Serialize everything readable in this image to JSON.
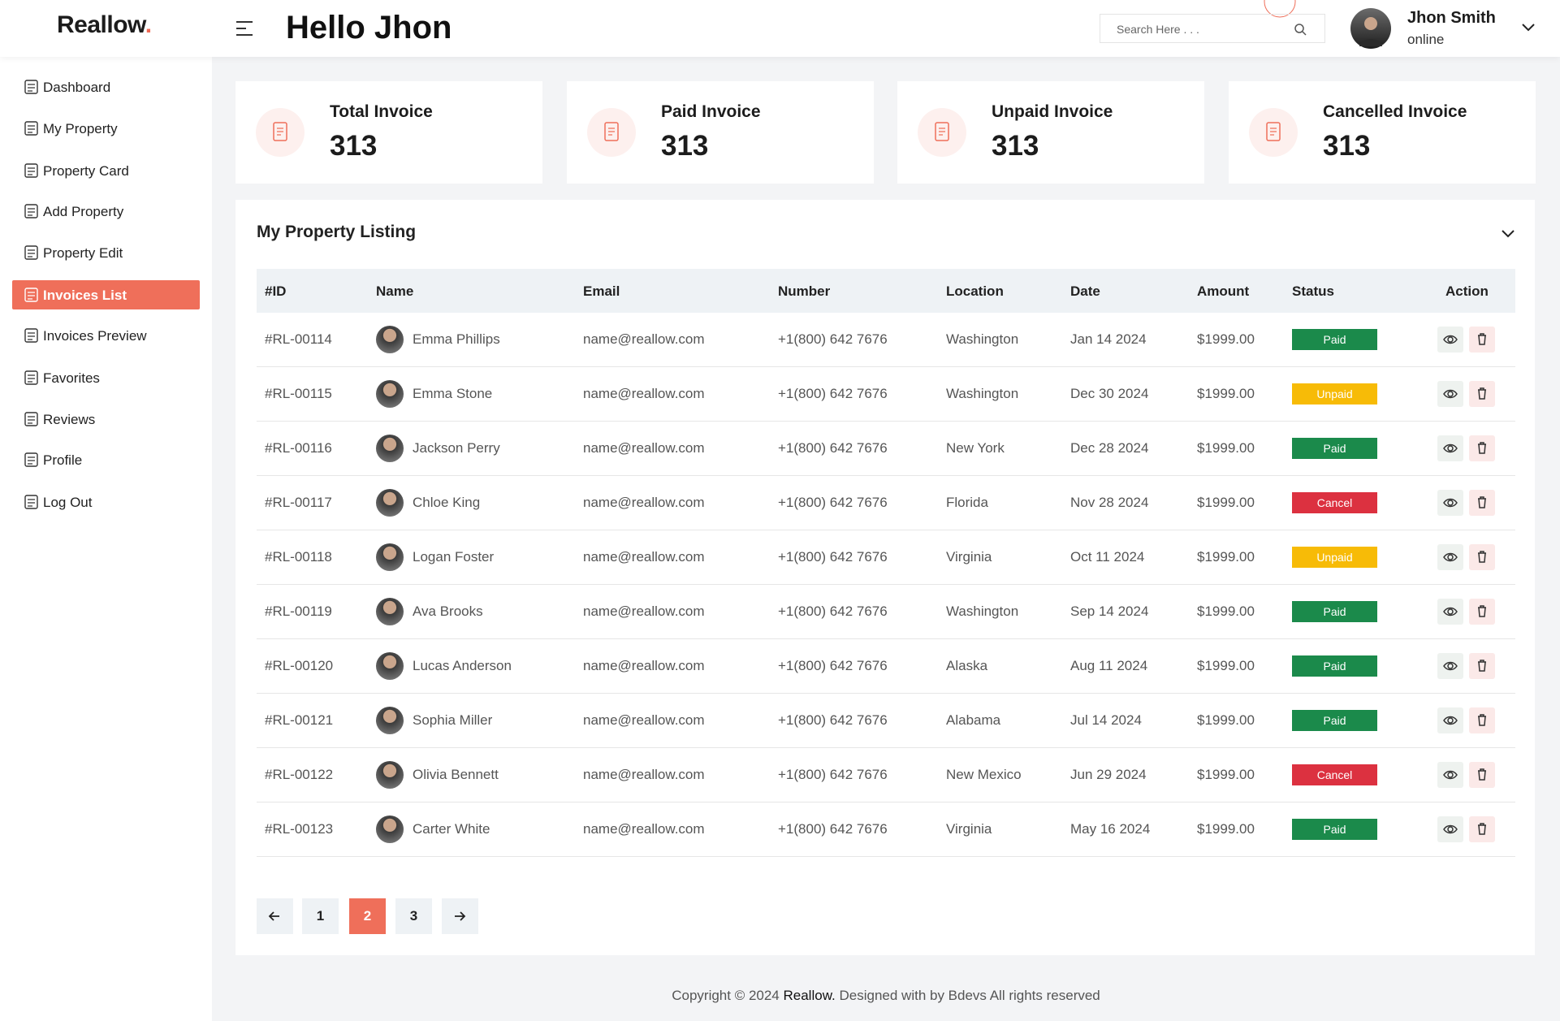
{
  "header": {
    "logo": "Reallow",
    "logo_dot": ".",
    "greeting": "Hello Jhon",
    "search_placeholder": "Search Here . . .",
    "user_name": "Jhon Smith",
    "user_status": "online"
  },
  "sidebar": {
    "items": [
      "Dashboard",
      "My Property",
      "Property Card",
      "Add Property",
      "Property Edit",
      "Invoices List",
      "Invoices Preview",
      "Favorites",
      "Reviews",
      "Profile",
      "Log Out"
    ],
    "active": 5
  },
  "cards": [
    {
      "title": "Total Invoice",
      "value": 313
    },
    {
      "title": "Paid Invoice",
      "value": 313
    },
    {
      "title": "Unpaid Invoice",
      "value": 313
    },
    {
      "title": "Cancelled Invoice",
      "value": 313
    }
  ],
  "listing": {
    "title": "My Property Listing",
    "columns": [
      "#ID",
      "Name",
      "Email",
      "Number",
      "Location",
      "Date",
      "Amount",
      "Status",
      "Action"
    ],
    "rows": [
      {
        "id": "#RL-00114",
        "name": "Emma Phillips",
        "email": "name@reallow.com",
        "number": "+1(800) 642 7676",
        "location": "Washington",
        "date": "Jan 14 2024",
        "amount": "$1999.00",
        "status": "Paid",
        "status_color": "#1b8a4b"
      },
      {
        "id": "#RL-00115",
        "name": "Emma Stone",
        "email": "name@reallow.com",
        "number": "+1(800) 642 7676",
        "location": "Washington",
        "date": "Dec 30 2024",
        "amount": "$1999.00",
        "status": "Unpaid",
        "status_color": "#f7bb07"
      },
      {
        "id": "#RL-00116",
        "name": "Jackson Perry",
        "email": "name@reallow.com",
        "number": "+1(800) 642 7676",
        "location": "New York",
        "date": "Dec 28 2024",
        "amount": "$1999.00",
        "status": "Paid",
        "status_color": "#1b8a4b"
      },
      {
        "id": "#RL-00117",
        "name": "Chloe King",
        "email": "name@reallow.com",
        "number": "+1(800) 642 7676",
        "location": "Florida",
        "date": "Nov 28 2024",
        "amount": "$1999.00",
        "status": "Cancel",
        "status_color": "#dc3140"
      },
      {
        "id": "#RL-00118",
        "name": "Logan Foster",
        "email": "name@reallow.com",
        "number": "+1(800) 642 7676",
        "location": "Virginia",
        "date": "Oct 11 2024",
        "amount": "$1999.00",
        "status": "Unpaid",
        "status_color": "#f7bb07"
      },
      {
        "id": "#RL-00119",
        "name": "Ava Brooks",
        "email": "name@reallow.com",
        "number": "+1(800) 642 7676",
        "location": "Washington",
        "date": "Sep 14 2024",
        "amount": "$1999.00",
        "status": "Paid",
        "status_color": "#1b8a4b"
      },
      {
        "id": "#RL-00120",
        "name": "Lucas Anderson",
        "email": "name@reallow.com",
        "number": "+1(800) 642 7676",
        "location": "Alaska",
        "date": "Aug 11 2024",
        "amount": "$1999.00",
        "status": "Paid",
        "status_color": "#1b8a4b"
      },
      {
        "id": "#RL-00121",
        "name": "Sophia Miller",
        "email": "name@reallow.com",
        "number": "+1(800) 642 7676",
        "location": "Alabama",
        "date": "Jul 14 2024",
        "amount": "$1999.00",
        "status": "Paid",
        "status_color": "#1b8a4b"
      },
      {
        "id": "#RL-00122",
        "name": "Olivia Bennett",
        "email": "name@reallow.com",
        "number": "+1(800) 642 7676",
        "location": "New Mexico",
        "date": "Jun 29 2024",
        "amount": "$1999.00",
        "status": "Cancel",
        "status_color": "#dc3140"
      },
      {
        "id": "#RL-00123",
        "name": "Carter White",
        "email": "name@reallow.com",
        "number": "+1(800) 642 7676",
        "location": "Virginia",
        "date": "May 16 2024",
        "amount": "$1999.00",
        "status": "Paid",
        "status_color": "#1b8a4b"
      }
    ]
  },
  "pagination": {
    "pages": [
      1,
      2,
      3
    ],
    "current": 2
  },
  "footer": {
    "prefix": "Copyright © 2024",
    "brand": "Reallow.",
    "suffix": "Designed with by Bdevs All rights reserved"
  }
}
